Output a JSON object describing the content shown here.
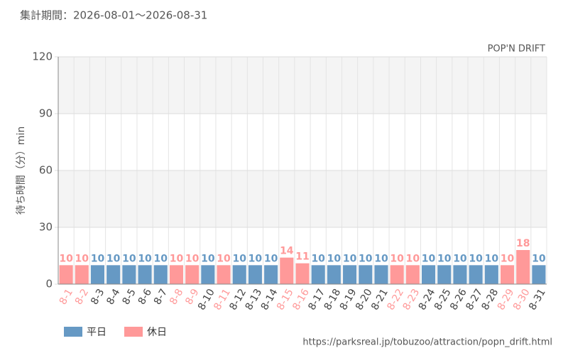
{
  "header": "集計期間：2026-08-01〜2026-08-31",
  "footer": "https://parksreal.jp/tobuzoo/attraction/popn_drift.html",
  "chart_data": {
    "type": "bar",
    "title": "POP'N DRIFT",
    "y_label": "待ち時間（分）min",
    "categories": [
      "8-1",
      "8-2",
      "8-3",
      "8-4",
      "8-5",
      "8-6",
      "8-7",
      "8-8",
      "8-9",
      "8-10",
      "8-11",
      "8-12",
      "8-13",
      "8-14",
      "8-15",
      "8-16",
      "8-17",
      "8-18",
      "8-19",
      "8-20",
      "8-21",
      "8-22",
      "8-23",
      "8-24",
      "8-25",
      "8-26",
      "8-27",
      "8-28",
      "8-29",
      "8-30",
      "8-31"
    ],
    "series": [
      {
        "name": "平日",
        "color": "#6699c4",
        "values": [
          null,
          null,
          10,
          10,
          10,
          10,
          10,
          null,
          null,
          10,
          null,
          10,
          10,
          10,
          null,
          null,
          10,
          10,
          10,
          10,
          10,
          null,
          null,
          10,
          10,
          10,
          10,
          10,
          null,
          null,
          10
        ]
      },
      {
        "name": "休日",
        "color": "#ff9999",
        "values": [
          10,
          10,
          null,
          null,
          null,
          null,
          null,
          10,
          10,
          null,
          10,
          null,
          null,
          null,
          14,
          11,
          null,
          null,
          null,
          null,
          null,
          10,
          10,
          null,
          null,
          null,
          null,
          null,
          10,
          18,
          null
        ]
      }
    ],
    "ylim": [
      0,
      120
    ],
    "yticks": [
      0,
      30,
      60,
      90,
      120
    ],
    "grid": true,
    "legend": "bottom-left"
  }
}
